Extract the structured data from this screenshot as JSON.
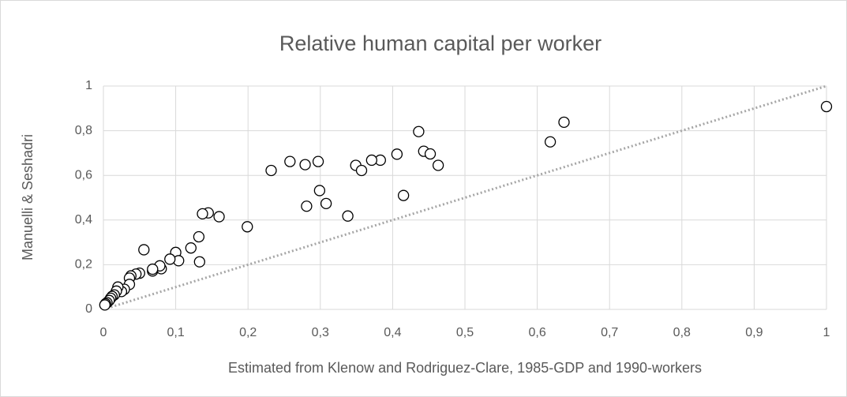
{
  "chart_data": {
    "type": "scatter",
    "title": "Relative human capital per worker",
    "x_label": "Estimated from Klenow and Rodriguez-Clare, 1985-GDP and 1990-workers",
    "y_label": "Manuelli & Seshadri",
    "marker_color": "#000000",
    "marker_fill": "#ffffff",
    "grid": true,
    "xlim": [
      0,
      1
    ],
    "ylim": [
      0,
      1
    ],
    "xticks": [
      0,
      {
        "value": 0.1,
        "label": "0,1"
      },
      {
        "value": 0.2,
        "label": "0,2"
      },
      {
        "value": 0.3,
        "label": "0,3"
      },
      {
        "value": 0.4,
        "label": "0,4"
      },
      {
        "value": 0.5,
        "label": "0,5"
      },
      {
        "value": 0.6,
        "label": "0,6"
      },
      {
        "value": 0.7,
        "label": "0,7"
      },
      {
        "value": 0.8,
        "label": "0,8"
      },
      {
        "value": 0.9,
        "label": "0,9"
      },
      1
    ],
    "yticks": [
      0,
      {
        "value": 0.2,
        "label": "0,2"
      },
      {
        "value": 0.4,
        "label": "0,4"
      },
      {
        "value": 0.6,
        "label": "0,6"
      },
      {
        "value": 0.8,
        "label": "0,8"
      },
      1
    ],
    "reference_line": {
      "x": [
        0,
        1
      ],
      "y": [
        0,
        1
      ],
      "color": "#a6a6a6"
    },
    "x": [
      1.0,
      0.637,
      0.618,
      0.436,
      0.443,
      0.452,
      0.463,
      0.406,
      0.383,
      0.371,
      0.349,
      0.357,
      0.297,
      0.279,
      0.258,
      0.232,
      0.299,
      0.415,
      0.308,
      0.281,
      0.338,
      0.16,
      0.145,
      0.137,
      0.199,
      0.132,
      0.121,
      0.133,
      0.1,
      0.104,
      0.092,
      0.08,
      0.078,
      0.068,
      0.068,
      0.056,
      0.05,
      0.045,
      0.038,
      0.036,
      0.036,
      0.029,
      0.025,
      0.02,
      0.018,
      0.015,
      0.012,
      0.01,
      0.008,
      0.005,
      0.003,
      0.002
    ],
    "y": [
      0.908,
      0.838,
      0.75,
      0.796,
      0.708,
      0.696,
      0.645,
      0.695,
      0.668,
      0.668,
      0.645,
      0.622,
      0.662,
      0.648,
      0.662,
      0.622,
      0.532,
      0.51,
      0.474,
      0.462,
      0.418,
      0.415,
      0.432,
      0.428,
      0.37,
      0.325,
      0.275,
      0.213,
      0.255,
      0.218,
      0.225,
      0.182,
      0.195,
      0.172,
      0.18,
      0.267,
      0.162,
      0.158,
      0.15,
      0.14,
      0.112,
      0.09,
      0.08,
      0.1,
      0.082,
      0.065,
      0.058,
      0.05,
      0.04,
      0.03,
      0.025,
      0.02
    ]
  }
}
